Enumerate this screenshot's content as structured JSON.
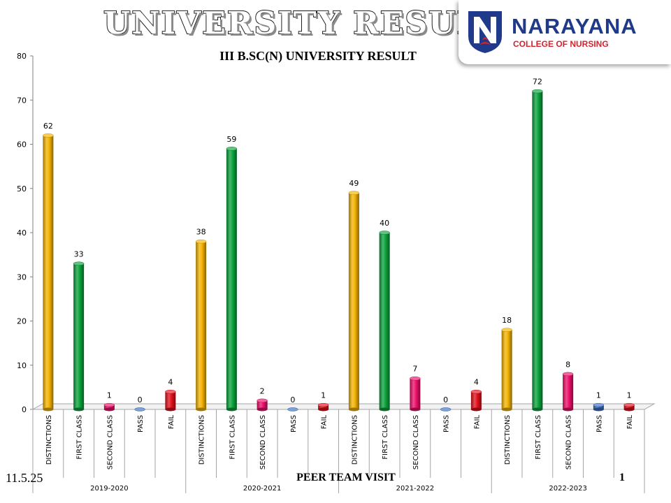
{
  "header": {
    "title": "UNIVERSITY RESULTS"
  },
  "logo": {
    "name": "NARAYANA",
    "subtitle": "COLLEGE OF NURSING",
    "colors": {
      "navy": "#1f3a8a",
      "red": "#d4232f"
    }
  },
  "footer": {
    "date": "11.5.25",
    "center_text": "PEER TEAM VISIT",
    "page_number": "1"
  },
  "chart_data": {
    "type": "bar",
    "title": "III B.SC(N) UNIVERSITY RESULT",
    "xlabel": "",
    "ylabel": "",
    "ylim": [
      0,
      80
    ],
    "yticks": [
      0,
      10,
      20,
      30,
      40,
      50,
      60,
      70,
      80
    ],
    "grid": false,
    "legend": "none",
    "groups": [
      {
        "label": "2019-2020",
        "categories": [
          "DISTINCTIONS",
          "FIRST CLASS",
          "SECOND CLASS",
          "PASS",
          "FAIL"
        ],
        "values": [
          62,
          33,
          1,
          0,
          4
        ]
      },
      {
        "label": "2020-2021",
        "categories": [
          "DISTINCTIONS",
          "FIRST CLASS",
          "SECOND CLASS",
          "PASS",
          "FAIL"
        ],
        "values": [
          38,
          59,
          2,
          0,
          1
        ]
      },
      {
        "label": "2021-2022",
        "categories": [
          "DISTINCTIONS",
          "FIRST CLASS",
          "SECOND CLASS",
          "PASS",
          "FAIL"
        ],
        "values": [
          49,
          40,
          7,
          0,
          4
        ]
      },
      {
        "label": "2022-2023",
        "categories": [
          "DISTINCTIONS",
          "FIRST CLASS",
          "SECOND CLASS",
          "PASS",
          "FAIL"
        ],
        "values": [
          18,
          72,
          8,
          1,
          1
        ]
      }
    ],
    "category_colors": {
      "DISTINCTIONS": "#f5b400",
      "FIRST CLASS": "#0aa33c",
      "SECOND CLASS": "#ee0f6a",
      "PASS": "#3a6fc4",
      "FAIL": "#e3101b"
    }
  }
}
